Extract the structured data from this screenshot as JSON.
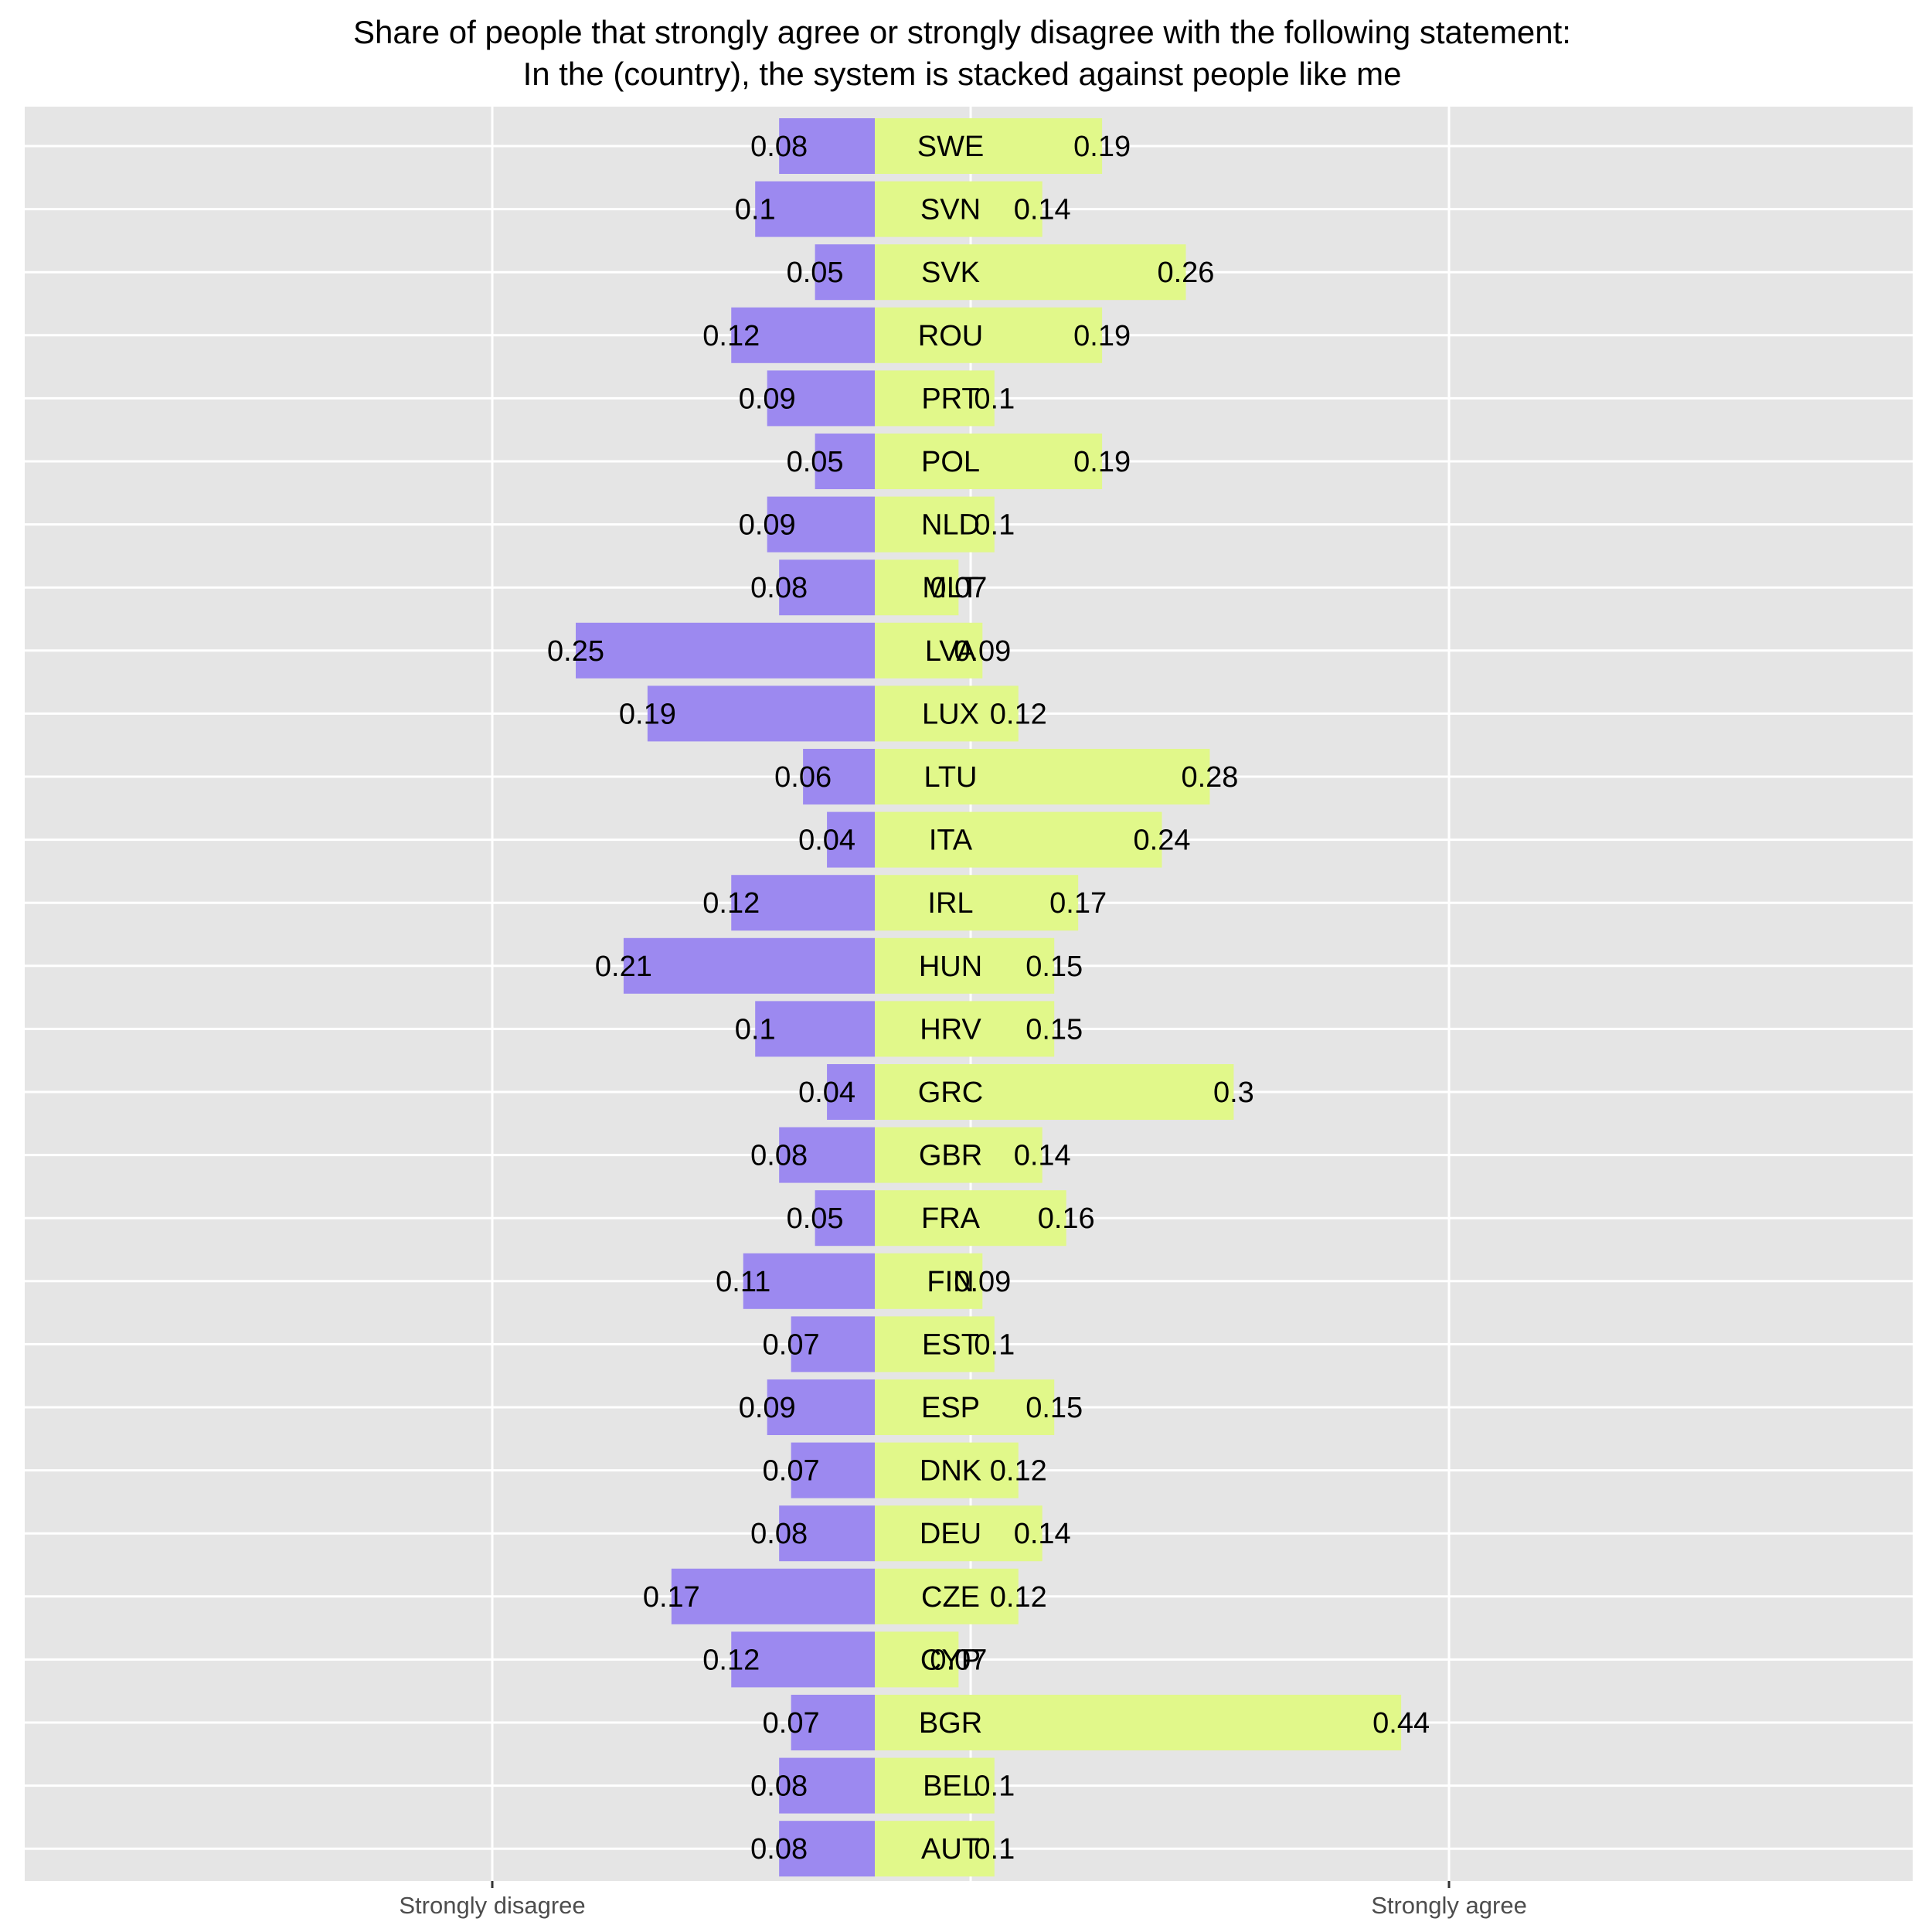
{
  "chart_data": {
    "type": "bar",
    "orientation": "horizontal-diverging",
    "title": "Share of people that strongly agree or strongly disagree with the following statement:",
    "subtitle": "In the (country), the system is stacked against people like me",
    "x_tick_labels": [
      "Strongly disagree",
      "Strongly agree"
    ],
    "grid": true,
    "categories": [
      "SWE",
      "SVN",
      "SVK",
      "ROU",
      "PRT",
      "POL",
      "NLD",
      "MLT",
      "LVA",
      "LUX",
      "LTU",
      "ITA",
      "IRL",
      "HUN",
      "HRV",
      "GRC",
      "GBR",
      "FRA",
      "FIN",
      "EST",
      "ESP",
      "DNK",
      "DEU",
      "CZE",
      "CYP",
      "BGR",
      "BEL",
      "AUT"
    ],
    "series": [
      {
        "key": "disagree",
        "color": "#9c89f0",
        "values": [
          0.08,
          0.1,
          0.05,
          0.12,
          0.09,
          0.05,
          0.09,
          0.08,
          0.25,
          0.19,
          0.06,
          0.04,
          0.12,
          0.21,
          0.1,
          0.04,
          0.08,
          0.05,
          0.11,
          0.07,
          0.09,
          0.07,
          0.08,
          0.17,
          0.12,
          0.07,
          0.08,
          0.08
        ],
        "labels": [
          "0.08",
          "0.1",
          "0.05",
          "0.12",
          "0.09",
          "0.05",
          "0.09",
          "0.08",
          "0.25",
          "0.19",
          "0.06",
          "0.04",
          "0.12",
          "0.21",
          "0.1",
          "0.04",
          "0.08",
          "0.05",
          "0.11",
          "0.07",
          "0.09",
          "0.07",
          "0.08",
          "0.17",
          "0.12",
          "0.07",
          "0.08",
          "0.08"
        ]
      },
      {
        "key": "agree",
        "color": "#e1f88a",
        "values": [
          0.19,
          0.14,
          0.26,
          0.19,
          0.1,
          0.19,
          0.1,
          0.07,
          0.09,
          0.12,
          0.28,
          0.24,
          0.17,
          0.15,
          0.15,
          0.3,
          0.14,
          0.16,
          0.09,
          0.1,
          0.15,
          0.12,
          0.14,
          0.12,
          0.07,
          0.44,
          0.1,
          0.1
        ],
        "labels": [
          "0.19",
          "0.14",
          "0.26",
          "0.19",
          "0.1",
          "0.19",
          "0.1",
          "0.07",
          "0.09",
          "0.12",
          "0.28",
          "0.24",
          "0.17",
          "0.15",
          "0.15",
          "0.3",
          "0.14",
          "0.16",
          "0.09",
          "0.1",
          "0.15",
          "0.12",
          "0.14",
          "0.12",
          "0.07",
          "0.44",
          "0.1",
          "0.1"
        ]
      }
    ],
    "style": {
      "panel_background": "#e5e5e5",
      "grid_color": "#ffffff"
    }
  }
}
